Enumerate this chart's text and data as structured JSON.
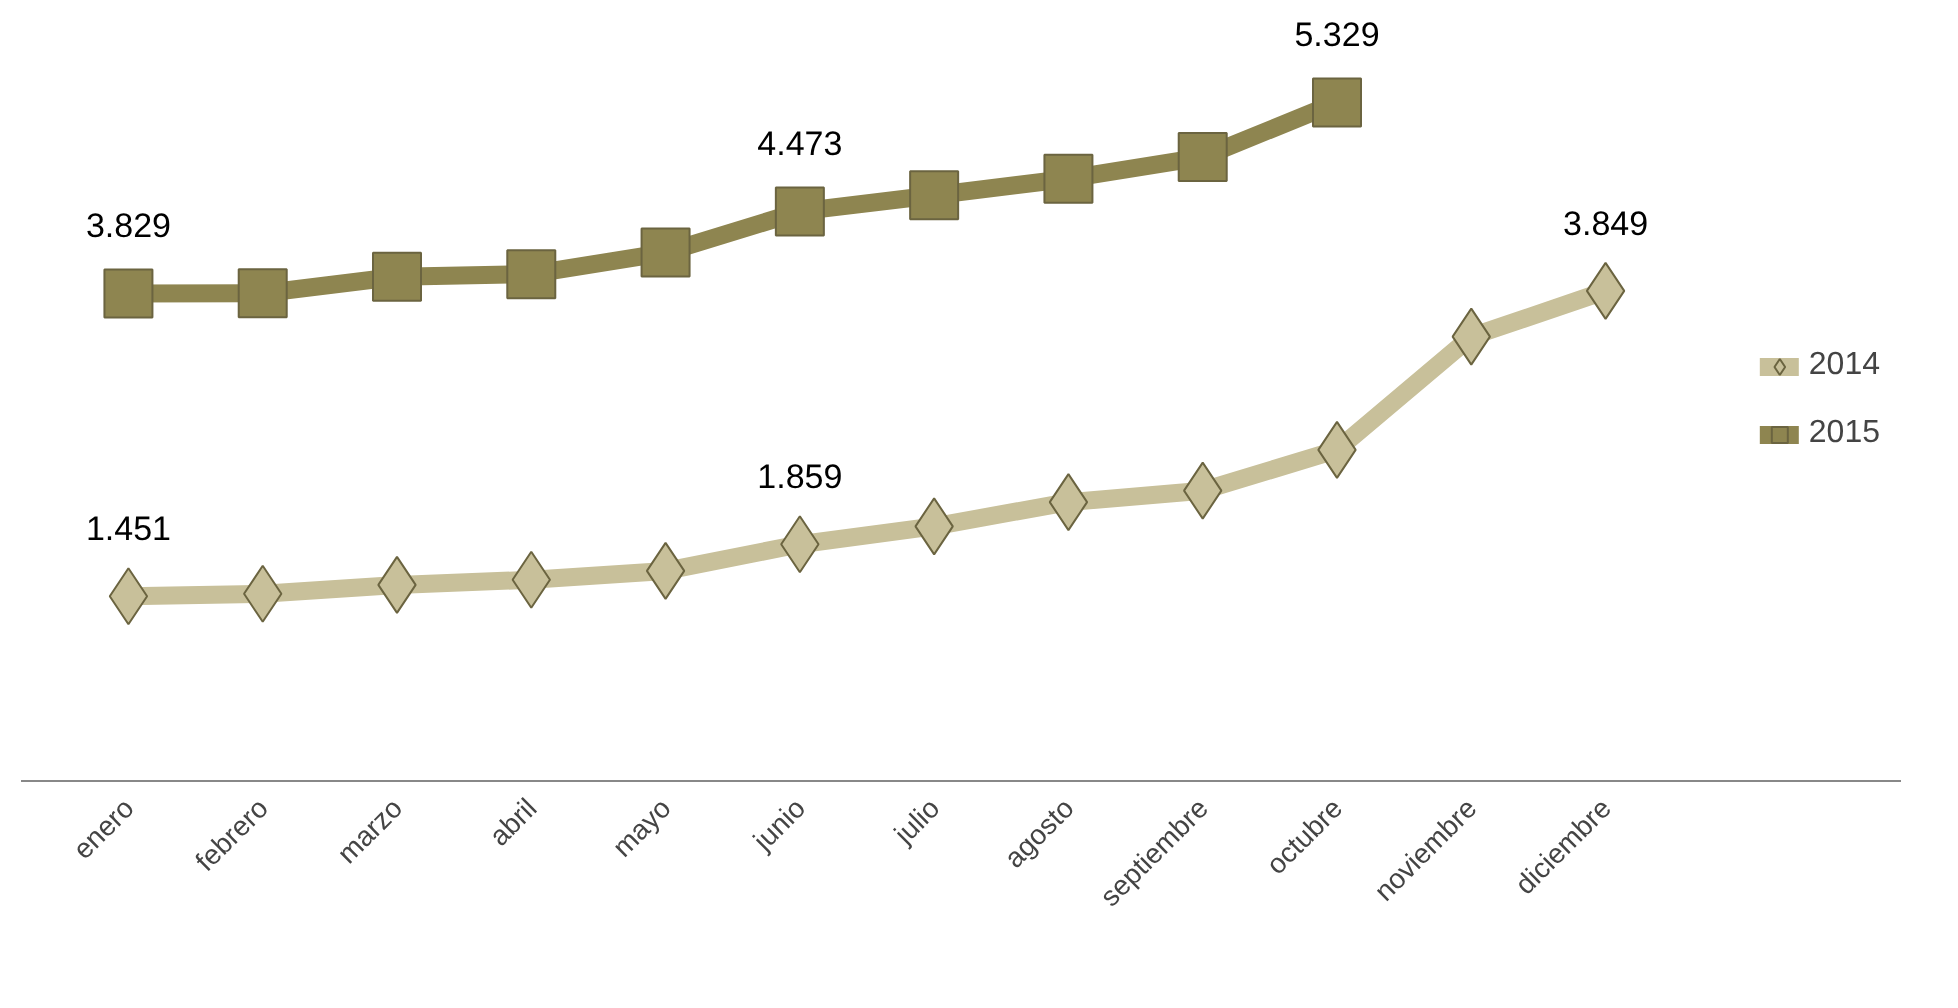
{
  "chart_data": {
    "type": "line",
    "categories": [
      "enero",
      "febrero",
      "marzo",
      "abril",
      "mayo",
      "junio",
      "julio",
      "agosto",
      "septiembre",
      "octubre",
      "noviembre",
      "diciembre"
    ],
    "series": [
      {
        "name": "2014",
        "color": "#c8c09a",
        "marker": "diamond",
        "values": [
          1.451,
          1.47,
          1.54,
          1.58,
          1.65,
          1.859,
          2.0,
          2.19,
          2.28,
          2.6,
          3.49,
          3.849
        ],
        "value_labels": [
          "1.451",
          null,
          null,
          null,
          null,
          "1.859",
          null,
          null,
          null,
          null,
          null,
          "3.849"
        ]
      },
      {
        "name": "2015",
        "color": "#8e8550",
        "marker": "square",
        "values": [
          3.829,
          3.83,
          3.96,
          3.98,
          4.15,
          4.473,
          4.6,
          4.73,
          4.9,
          5.329,
          null,
          null
        ],
        "value_labels": [
          "3.829",
          null,
          null,
          null,
          null,
          "4.473",
          null,
          null,
          null,
          "5.329",
          null,
          null
        ]
      }
    ],
    "legend": "right",
    "grid": false,
    "tick_labels": "x"
  }
}
